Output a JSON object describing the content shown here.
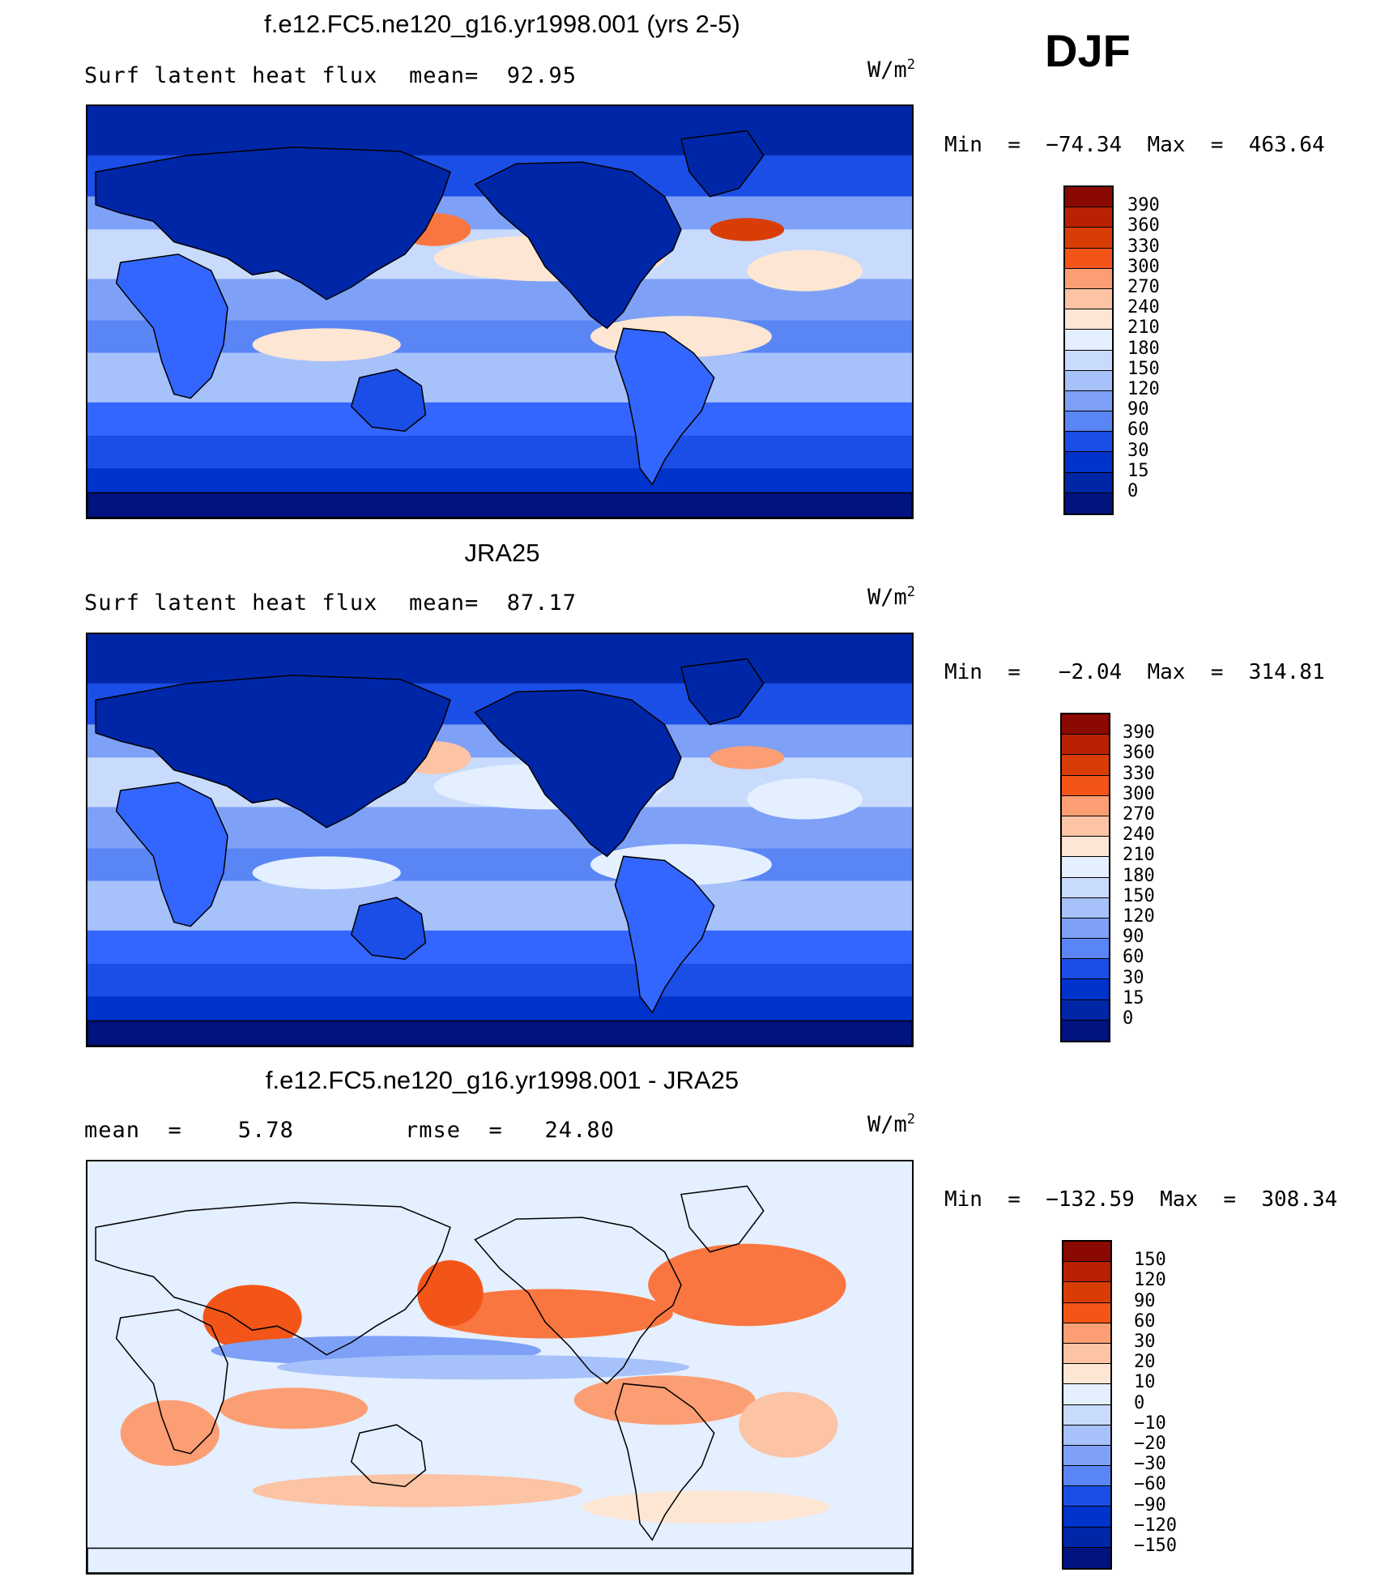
{
  "season": "DJF",
  "units": "W/m",
  "units_exp": "2",
  "palettes": {
    "abs": [
      "#00137f",
      "#0026a8",
      "#0033cc",
      "#1a4ee6",
      "#3366ff",
      "#5a85f5",
      "#7ea1f7",
      "#a7c1fa",
      "#c8dbfc",
      "#e4efff",
      "#fde6d3",
      "#fcc3a4",
      "#fc9e74",
      "#fa7640",
      "#f25517",
      "#d93d06",
      "#b82202",
      "#8a0a02"
    ],
    "diff": [
      "#00137f",
      "#0026a8",
      "#0033cc",
      "#1a4ee6",
      "#3366ff",
      "#5a85f5",
      "#7ea1f7",
      "#a7c1fa",
      "#c8dbfc",
      "#e4efff",
      "#fde6d3",
      "#fcc3a4",
      "#fc9e74",
      "#fa7640",
      "#f25517",
      "#d93d06",
      "#b82202",
      "#8a0a02"
    ]
  },
  "panels": [
    {
      "title": "f.e12.FC5.ne120_g16.yr1998.001 (yrs 2-5)",
      "subtitle_left": "Surf latent heat flux",
      "subtitle_mid": "mean=  92.95",
      "minmax": "Min  =  −74.34  Max  =  463.64",
      "palette": "abs",
      "levels": [
        "390",
        "360",
        "330",
        "300",
        "270",
        "240",
        "210",
        "180",
        "150",
        "120",
        "90",
        "60",
        "30",
        "15",
        "0"
      ]
    },
    {
      "title": "JRA25",
      "subtitle_left": "Surf latent heat flux",
      "subtitle_mid": "mean=  87.17",
      "minmax": "Min  =   −2.04  Max  =  314.81",
      "palette": "abs",
      "levels": [
        "390",
        "360",
        "330",
        "300",
        "270",
        "240",
        "210",
        "180",
        "150",
        "120",
        "90",
        "60",
        "30",
        "15",
        "0"
      ]
    },
    {
      "title": "f.e12.FC5.ne120_g16.yr1998.001 - JRA25",
      "subtitle_left": "mean  =    5.78",
      "subtitle_mid": "rmse  =   24.80",
      "minmax": "Min  =  −132.59  Max  =  308.34",
      "palette": "diff",
      "levels": [
        "150",
        "120",
        "90",
        "60",
        "30",
        "20",
        "10",
        "0",
        "−10",
        "−20",
        "−30",
        "−60",
        "−90",
        "−120",
        "−150"
      ]
    }
  ],
  "chart_data": [
    {
      "type": "heatmap",
      "title": "f.e12.FC5.ne120_g16.yr1998.001 (yrs 2-5)",
      "variable": "Surf latent heat flux",
      "units": "W/m2",
      "mean": 92.95,
      "min": -74.34,
      "max": 463.64,
      "contour_levels": [
        0,
        15,
        30,
        60,
        90,
        120,
        150,
        180,
        210,
        240,
        270,
        300,
        330,
        360,
        390
      ]
    },
    {
      "type": "heatmap",
      "title": "JRA25",
      "variable": "Surf latent heat flux",
      "units": "W/m2",
      "mean": 87.17,
      "min": -2.04,
      "max": 314.81,
      "contour_levels": [
        0,
        15,
        30,
        60,
        90,
        120,
        150,
        180,
        210,
        240,
        270,
        300,
        330,
        360,
        390
      ]
    },
    {
      "type": "heatmap",
      "title": "f.e12.FC5.ne120_g16.yr1998.001 - JRA25",
      "units": "W/m2",
      "mean": 5.78,
      "rmse": 24.8,
      "min": -132.59,
      "max": 308.34,
      "contour_levels": [
        -150,
        -120,
        -90,
        -60,
        -30,
        -20,
        -10,
        0,
        10,
        20,
        30,
        60,
        90,
        120,
        150
      ]
    }
  ]
}
